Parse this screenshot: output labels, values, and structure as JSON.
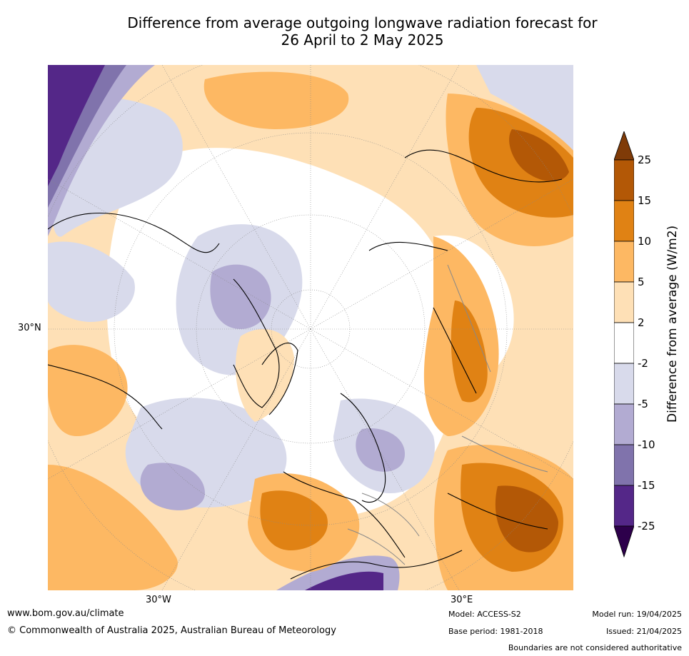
{
  "title": {
    "line1": "Difference from average outgoing longwave radiation forecast for",
    "line2": "26 April to 2 May 2025"
  },
  "map": {
    "projection": "north-polar-stereographic",
    "labels": {
      "lat_left": "30°N",
      "lon_left": "30°W",
      "lon_right": "30°E"
    }
  },
  "colorbar": {
    "label": "Difference from average (W/m2)",
    "ticks": [
      "25",
      "15",
      "10",
      "5",
      "2",
      "-2",
      "-5",
      "-10",
      "-15",
      "-25"
    ],
    "colors": {
      "gt25": "#7f3b08",
      "15_25": "#b35806",
      "10_15": "#e08214",
      "5_10": "#fdb863",
      "2_5": "#fee0b6",
      "m2_2": "#ffffff",
      "m5_m2": "#d8daeb",
      "m10_m5": "#b2abd2",
      "m15_m10": "#8073ac",
      "m25_m15": "#542788",
      "lt_m25": "#2d004b"
    }
  },
  "footer": {
    "website": "www.bom.gov.au/climate",
    "copyright": "© Commonwealth of Australia 2025, Australian Bureau of Meteorology",
    "model": "Model: ACCESS-S2",
    "base_period": "Base period: 1981-2018",
    "model_run": "Model run: 19/04/2025",
    "issued": "Issued: 21/04/2025",
    "disclaimer": "Boundaries are not considered authoritative"
  }
}
